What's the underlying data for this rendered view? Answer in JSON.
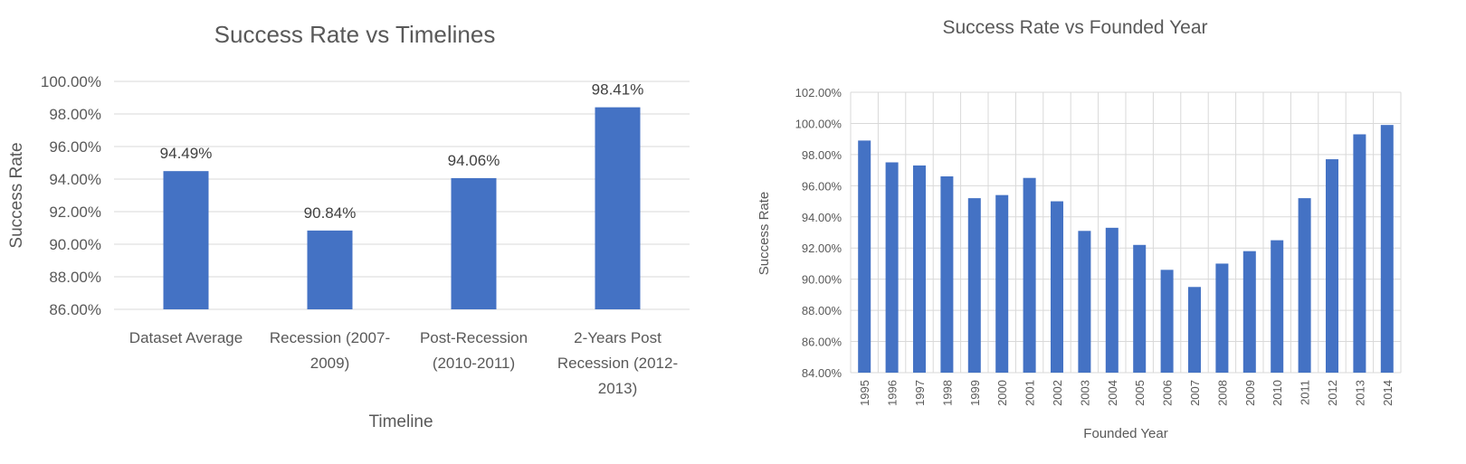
{
  "chart_data": [
    {
      "type": "bar",
      "title": "Success Rate vs Timelines",
      "xlabel": "Timeline",
      "ylabel": "Success Rate",
      "categories": [
        [
          "Dataset Average"
        ],
        [
          "Recession (2007-",
          "2009)"
        ],
        [
          "Post-Recession",
          "(2010-2011)"
        ],
        [
          "2-Years Post",
          "Recession (2012-",
          "2013)"
        ]
      ],
      "values": [
        94.49,
        90.84,
        94.06,
        98.41
      ],
      "data_labels": [
        "94.49%",
        "90.84%",
        "94.06%",
        "98.41%"
      ],
      "ylim": [
        86,
        100
      ],
      "yticks": [
        "86.00%",
        "88.00%",
        "90.00%",
        "92.00%",
        "94.00%",
        "96.00%",
        "98.00%",
        "100.00%"
      ],
      "grid": true,
      "legend": "none",
      "color": "#4472c4"
    },
    {
      "type": "bar",
      "title": "Success Rate vs Founded Year",
      "xlabel": "Founded Year",
      "ylabel": "Success Rate",
      "categories": [
        "1995",
        "1996",
        "1997",
        "1998",
        "1999",
        "2000",
        "2001",
        "2002",
        "2003",
        "2004",
        "2005",
        "2006",
        "2007",
        "2008",
        "2009",
        "2010",
        "2011",
        "2012",
        "2013",
        "2014"
      ],
      "values": [
        98.9,
        97.5,
        97.3,
        96.6,
        95.2,
        95.4,
        96.5,
        95.0,
        93.1,
        93.3,
        92.2,
        90.6,
        89.5,
        91.0,
        91.8,
        92.5,
        95.2,
        97.7,
        99.3,
        99.9
      ],
      "ylim": [
        84,
        102
      ],
      "yticks": [
        "84.00%",
        "86.00%",
        "88.00%",
        "90.00%",
        "92.00%",
        "94.00%",
        "96.00%",
        "98.00%",
        "100.00%",
        "102.00%"
      ],
      "grid": true,
      "legend": "none",
      "color": "#4472c4"
    }
  ]
}
